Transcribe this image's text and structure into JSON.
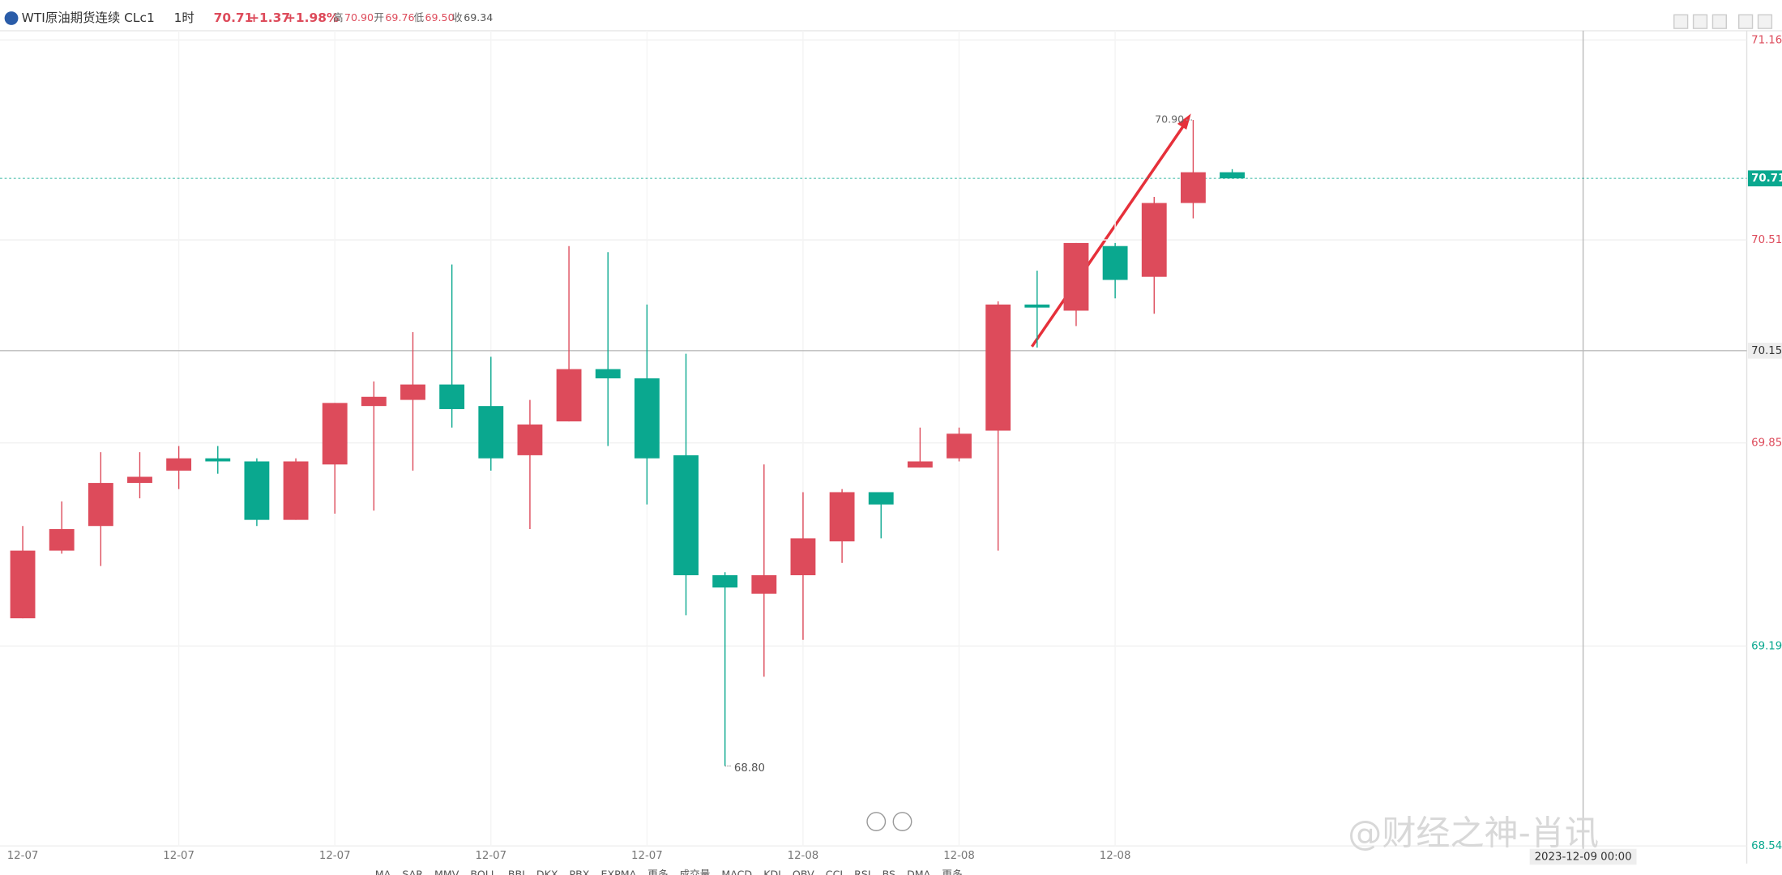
{
  "header": {
    "symbol": "WTI原油期货连续 CLc1",
    "interval": "1时",
    "last": "70.71",
    "change": "+1.37",
    "change_pct": "+1.98%",
    "high_label": "高",
    "high": "70.90",
    "open_label": "开",
    "open": "69.76",
    "low_label": "低",
    "low": "69.50",
    "close_label": "收",
    "close": "69.34"
  },
  "toolbar": [
    "MA",
    "SAR",
    "MMV",
    "BOLL",
    "BBI",
    "DKX",
    "PBX",
    "EXPMA",
    "更多",
    "成交量",
    "MACD",
    "KDJ",
    "OBV",
    "CCI",
    "RSI",
    "BS",
    "DMA",
    "更多"
  ],
  "watermark": "@财经之神-肖讯",
  "chart_data": {
    "type": "candlestick",
    "categories": [
      "12-07",
      null,
      null,
      null,
      "12-07",
      null,
      null,
      null,
      "12-07",
      null,
      null,
      null,
      "12-07",
      null,
      null,
      null,
      "12-07",
      null,
      null,
      null,
      "12-08",
      null,
      null,
      null,
      "12-08",
      null,
      null,
      null,
      "12-08",
      null,
      null,
      null
    ],
    "open": [
      69.28,
      69.5,
      69.58,
      69.72,
      69.76,
      69.8,
      69.79,
      69.6,
      69.78,
      69.97,
      69.99,
      70.04,
      69.97,
      69.81,
      69.92,
      70.09,
      70.06,
      69.81,
      69.42,
      69.36,
      69.42,
      69.53,
      69.69,
      69.77,
      69.8,
      69.89,
      70.3,
      70.28,
      70.49,
      70.39,
      70.63,
      70.73
    ],
    "high": [
      69.58,
      69.66,
      69.82,
      69.82,
      69.84,
      69.84,
      69.8,
      69.8,
      69.98,
      70.05,
      70.21,
      70.43,
      70.13,
      69.99,
      70.49,
      70.47,
      70.3,
      70.14,
      69.43,
      69.78,
      69.69,
      69.7,
      69.69,
      69.9,
      69.9,
      70.31,
      70.41,
      70.5,
      70.5,
      70.65,
      70.9,
      70.74
    ],
    "low": [
      69.28,
      69.49,
      69.45,
      69.67,
      69.7,
      69.75,
      69.58,
      69.6,
      69.62,
      69.63,
      69.76,
      69.9,
      69.76,
      69.57,
      69.92,
      69.84,
      69.65,
      69.29,
      68.8,
      69.09,
      69.21,
      69.46,
      69.54,
      69.77,
      69.79,
      69.5,
      70.16,
      70.23,
      70.32,
      70.27,
      70.58,
      70.71
    ],
    "close": [
      69.5,
      69.57,
      69.72,
      69.74,
      69.8,
      69.79,
      69.6,
      69.79,
      69.98,
      70.0,
      70.04,
      69.96,
      69.8,
      69.91,
      70.09,
      70.06,
      69.8,
      69.42,
      69.38,
      69.42,
      69.54,
      69.69,
      69.65,
      69.79,
      69.88,
      70.3,
      70.29,
      70.5,
      70.38,
      70.63,
      70.73,
      70.71
    ],
    "up_color": "#dd4b5b",
    "down_color": "#0aa88f",
    "ylim": [
      68.49,
      71.19
    ],
    "yticks": [
      71.16,
      70.51,
      69.85,
      69.19,
      68.54
    ],
    "reference_price": 69.34,
    "last_price": 70.71,
    "crosshair": {
      "price": 70.15,
      "time": "2023-12-09 00:00"
    },
    "annotations": [
      {
        "text": "70.90",
        "value": 70.9
      },
      {
        "text": "68.80",
        "value": 68.8
      }
    ],
    "grid": true
  }
}
